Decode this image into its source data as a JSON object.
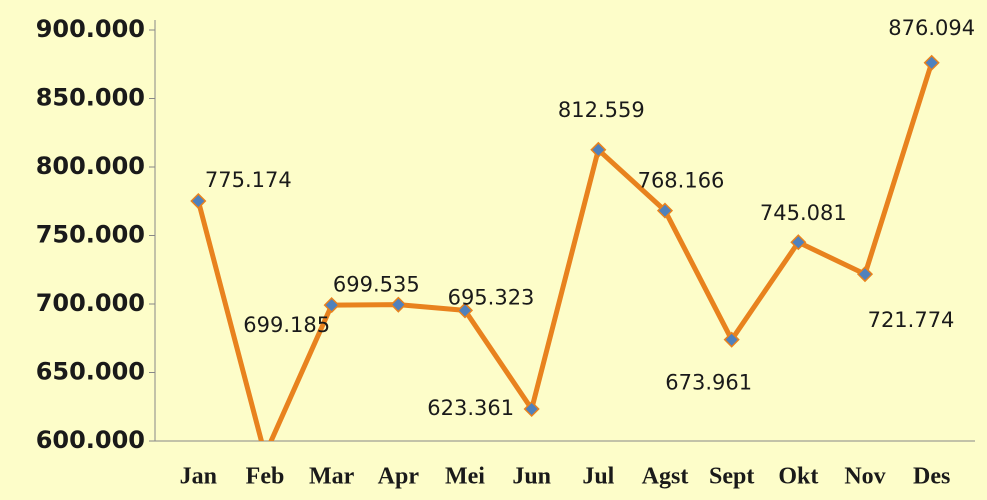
{
  "chart_data": {
    "type": "line",
    "categories": [
      "Jan",
      "Feb",
      "Mar",
      "Apr",
      "Mei",
      "Jun",
      "Jul",
      "Agst",
      "Sept",
      "Okt",
      "Nov",
      "Des"
    ],
    "series": [
      {
        "name": null,
        "color": "#e8821e",
        "values": [
          775174,
          590000,
          699185,
          699535,
          695323,
          623361,
          812559,
          768166,
          673961,
          745081,
          721774,
          876094
        ],
        "value_labels": [
          "775.174",
          null,
          "699.185",
          "699.535",
          "695.323",
          "623.361",
          "812.559",
          "768.166",
          "673.961",
          "745.081",
          "721.774",
          "876.094"
        ]
      }
    ],
    "marker_color": "#4f81bd",
    "ylim": [
      600000,
      900000
    ],
    "yticks": [
      {
        "value": 600000,
        "label": "600.000"
      },
      {
        "value": 650000,
        "label": "650.000"
      },
      {
        "value": 700000,
        "label": "700.000"
      },
      {
        "value": 750000,
        "label": "750.000"
      },
      {
        "value": 800000,
        "label": "800.000"
      },
      {
        "value": 850000,
        "label": "850.000"
      },
      {
        "value": 900000,
        "label": "900.000"
      }
    ]
  }
}
